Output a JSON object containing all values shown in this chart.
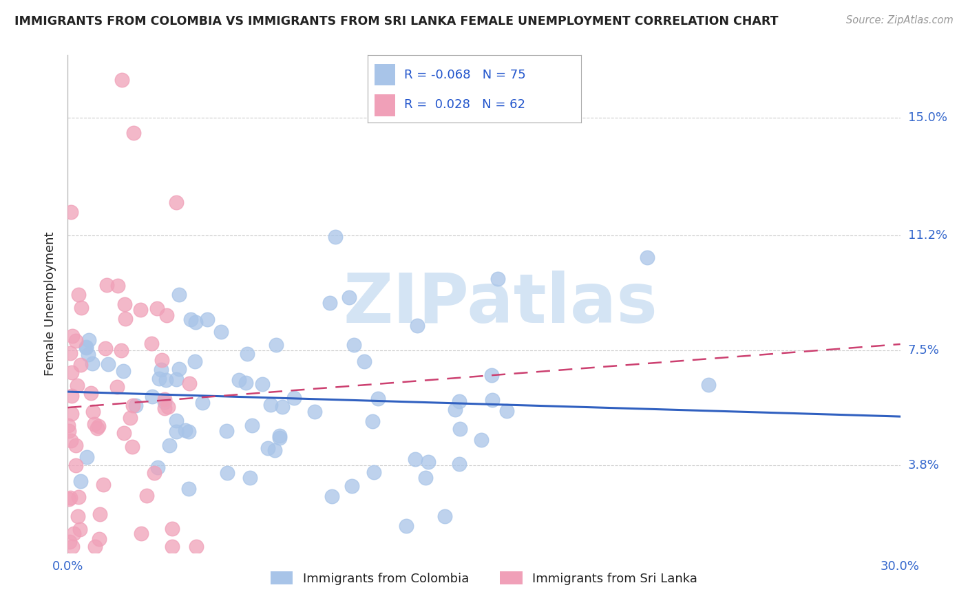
{
  "title": "IMMIGRANTS FROM COLOMBIA VS IMMIGRANTS FROM SRI LANKA FEMALE UNEMPLOYMENT CORRELATION CHART",
  "source": "Source: ZipAtlas.com",
  "ylabel": "Female Unemployment",
  "xlim": [
    0.0,
    0.3
  ],
  "ylim": [
    0.01,
    0.17
  ],
  "yticks": [
    0.038,
    0.075,
    0.112,
    0.15
  ],
  "ytick_labels": [
    "3.8%",
    "7.5%",
    "11.2%",
    "15.0%"
  ],
  "xticks": [
    0.0,
    0.05,
    0.1,
    0.15,
    0.2,
    0.25,
    0.3
  ],
  "xtick_labels": [
    "0.0%",
    "",
    "",
    "",
    "",
    "",
    "30.0%"
  ],
  "colombia_R": -0.068,
  "colombia_N": 75,
  "srilanka_R": 0.028,
  "srilanka_N": 62,
  "colombia_color": "#a8c4e8",
  "srilanka_color": "#f0a0b8",
  "trend_colombia_color": "#3060c0",
  "trend_srilanka_color": "#cc4070",
  "watermark": "ZIPatlas",
  "watermark_color": "#d4e4f4",
  "legend_label_colombia": "Immigrants from Colombia",
  "legend_label_srilanka": "Immigrants from Sri Lanka",
  "background_color": "#ffffff",
  "grid_color": "#cccccc",
  "axis_label_color": "#3366cc",
  "text_color": "#222222"
}
